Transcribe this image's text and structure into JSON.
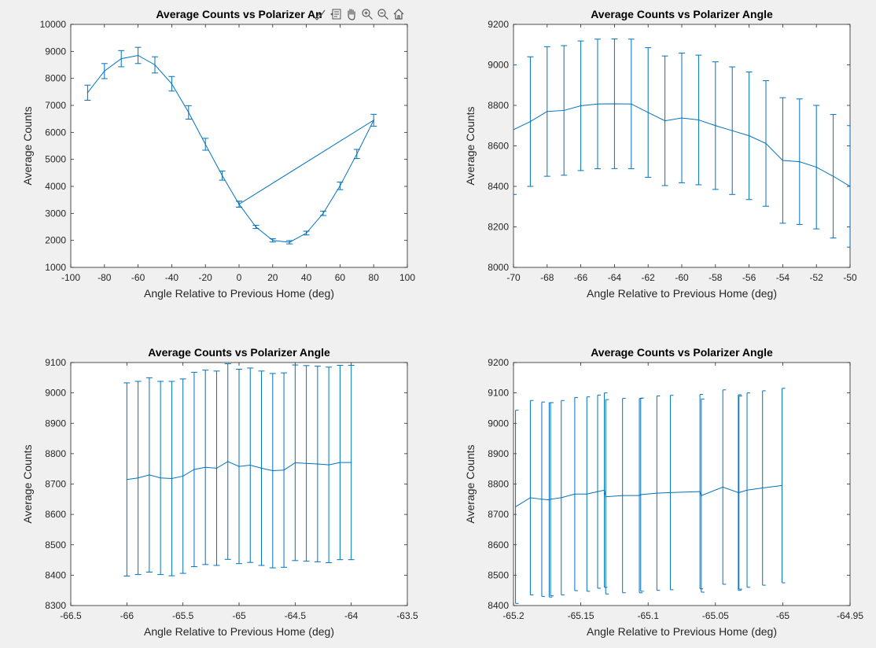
{
  "figure": {
    "background": "#f0f0f0"
  },
  "toolbar": {
    "icons": [
      "brush-icon",
      "datatip-icon",
      "pan-hand-icon",
      "zoom-in-icon",
      "zoom-out-icon",
      "home-icon"
    ]
  },
  "style": {
    "series_color": "#0072bd",
    "axes_color": "#262626"
  },
  "chart_data": [
    {
      "type": "line",
      "title": "Average Counts vs Polarizer Angle",
      "title_visible": "Average Counts vs Polarizer An",
      "xlabel": "Angle Relative to Previous Home (deg)",
      "ylabel": "Average Counts",
      "xlim": [
        -100,
        100
      ],
      "ylim": [
        1000,
        10000
      ],
      "xticks": [
        -100,
        -80,
        -60,
        -40,
        -20,
        0,
        20,
        40,
        60,
        80,
        100
      ],
      "yticks": [
        1000,
        2000,
        3000,
        4000,
        5000,
        6000,
        7000,
        8000,
        9000,
        10000
      ],
      "x": [
        -90,
        -80,
        -70,
        -60,
        -50,
        -40,
        -30,
        -20,
        -10,
        0,
        80,
        70,
        60,
        50,
        40,
        30,
        20,
        10,
        0
      ],
      "y": [
        7470,
        8270,
        8730,
        8850,
        8500,
        7800,
        6740,
        5560,
        4400,
        3340,
        6450,
        5200,
        4020,
        3000,
        2270,
        1930,
        2000,
        2500,
        3340
      ],
      "err": [
        280,
        280,
        300,
        300,
        300,
        270,
        250,
        220,
        170,
        110,
        220,
        170,
        140,
        80,
        70,
        60,
        60,
        60,
        110
      ],
      "connect_from": 1,
      "error_caps": true
    },
    {
      "type": "line",
      "title": "Average Counts vs Polarizer Angle",
      "xlabel": "Angle Relative to Previous Home (deg)",
      "ylabel": "Average Counts",
      "xlim": [
        -70,
        -50
      ],
      "ylim": [
        8000,
        9200
      ],
      "xticks": [
        -70,
        -68,
        -66,
        -64,
        -62,
        -60,
        -58,
        -56,
        -54,
        -52,
        -50
      ],
      "yticks": [
        8000,
        8200,
        8400,
        8600,
        8800,
        9000,
        9200
      ],
      "x": [
        -70,
        -69,
        -68,
        -67,
        -66,
        -65,
        -64,
        -63,
        -62,
        -61,
        -60,
        -59,
        -58,
        -57,
        -56,
        -55,
        -54,
        -53,
        -52,
        -51,
        -50
      ],
      "y": [
        8680,
        8720,
        8770,
        8775,
        8798,
        8807,
        8808,
        8807,
        8765,
        8724,
        8738,
        8728,
        8700,
        8675,
        8650,
        8612,
        8528,
        8522,
        8495,
        8450,
        8400
      ],
      "err": [
        320,
        320,
        320,
        320,
        320,
        320,
        320,
        320,
        320,
        320,
        320,
        320,
        315,
        315,
        315,
        310,
        310,
        310,
        305,
        305,
        300
      ],
      "connect_from": 0,
      "error_caps": true
    },
    {
      "type": "line",
      "title": "Average Counts vs Polarizer Angle",
      "xlabel": "Angle Relative to Previous Home (deg)",
      "ylabel": "Average Counts",
      "xlim": [
        -66.5,
        -63.5
      ],
      "ylim": [
        8300,
        9100
      ],
      "xticks": [
        -66.5,
        -66,
        -65.5,
        -65,
        -64.5,
        -64,
        -63.5
      ],
      "yticks": [
        8300,
        8400,
        8500,
        8600,
        8700,
        8800,
        8900,
        9000,
        9100
      ],
      "x": [
        -66,
        -65.9,
        -65.8,
        -65.7,
        -65.6,
        -65.5,
        -65.4,
        -65.3,
        -65.2,
        -65.1,
        -65,
        -64.9,
        -64.8,
        -64.7,
        -64.6,
        -64.5,
        -64.4,
        -64.3,
        -64.2,
        -64.1,
        -64
      ],
      "y": [
        8715,
        8720,
        8730,
        8720,
        8718,
        8726,
        8748,
        8755,
        8752,
        8774,
        8758,
        8762,
        8752,
        8744,
        8746,
        8770,
        8768,
        8766,
        8763,
        8771,
        8771
      ],
      "err": [
        318,
        318,
        320,
        318,
        320,
        320,
        320,
        320,
        320,
        322,
        320,
        320,
        320,
        320,
        320,
        322,
        322,
        322,
        322,
        320,
        320
      ],
      "connect_from": 0,
      "error_caps": true
    },
    {
      "type": "line",
      "title": "Average Counts vs Polarizer Angle",
      "xlabel": "Angle Relative to Previous Home (deg)",
      "ylabel": "Average Counts",
      "xlim": [
        -65.2,
        -64.95
      ],
      "ylim": [
        8400,
        9200
      ],
      "xticks": [
        -65.2,
        -65.15,
        -65.1,
        -65.05,
        -65,
        -64.95
      ],
      "xtick_labels": [
        "-65.2",
        "-65.15",
        "-65.1",
        "-65.05",
        "-65",
        "-64.95"
      ],
      "yticks": [
        8400,
        8500,
        8600,
        8700,
        8800,
        8900,
        9000,
        9100,
        9200
      ],
      "x": [
        -65.1985,
        -65.1875,
        -65.179,
        -65.1735,
        -65.1725,
        -65.1645,
        -65.1545,
        -65.1455,
        -65.1375,
        -65.1325,
        -65.1315,
        -65.119,
        -65.1065,
        -65.1055,
        -65.0935,
        -65.0835,
        -65.0615,
        -65.0605,
        -65.0445,
        -65.033,
        -65.0325,
        -65.0265,
        -65.015,
        -65.0005
      ],
      "y": [
        8725,
        8755,
        8750,
        8748,
        8750,
        8755,
        8767,
        8767,
        8775,
        8780,
        8758,
        8762,
        8762,
        8765,
        8770,
        8772,
        8775,
        8762,
        8790,
        8772,
        8772,
        8780,
        8787,
        8795
      ],
      "err": [
        318,
        320,
        320,
        320,
        318,
        320,
        318,
        320,
        318,
        320,
        320,
        320,
        320,
        318,
        320,
        320,
        320,
        318,
        320,
        322,
        318,
        320,
        320,
        320
      ],
      "connect_from": 0,
      "error_caps": false
    }
  ]
}
